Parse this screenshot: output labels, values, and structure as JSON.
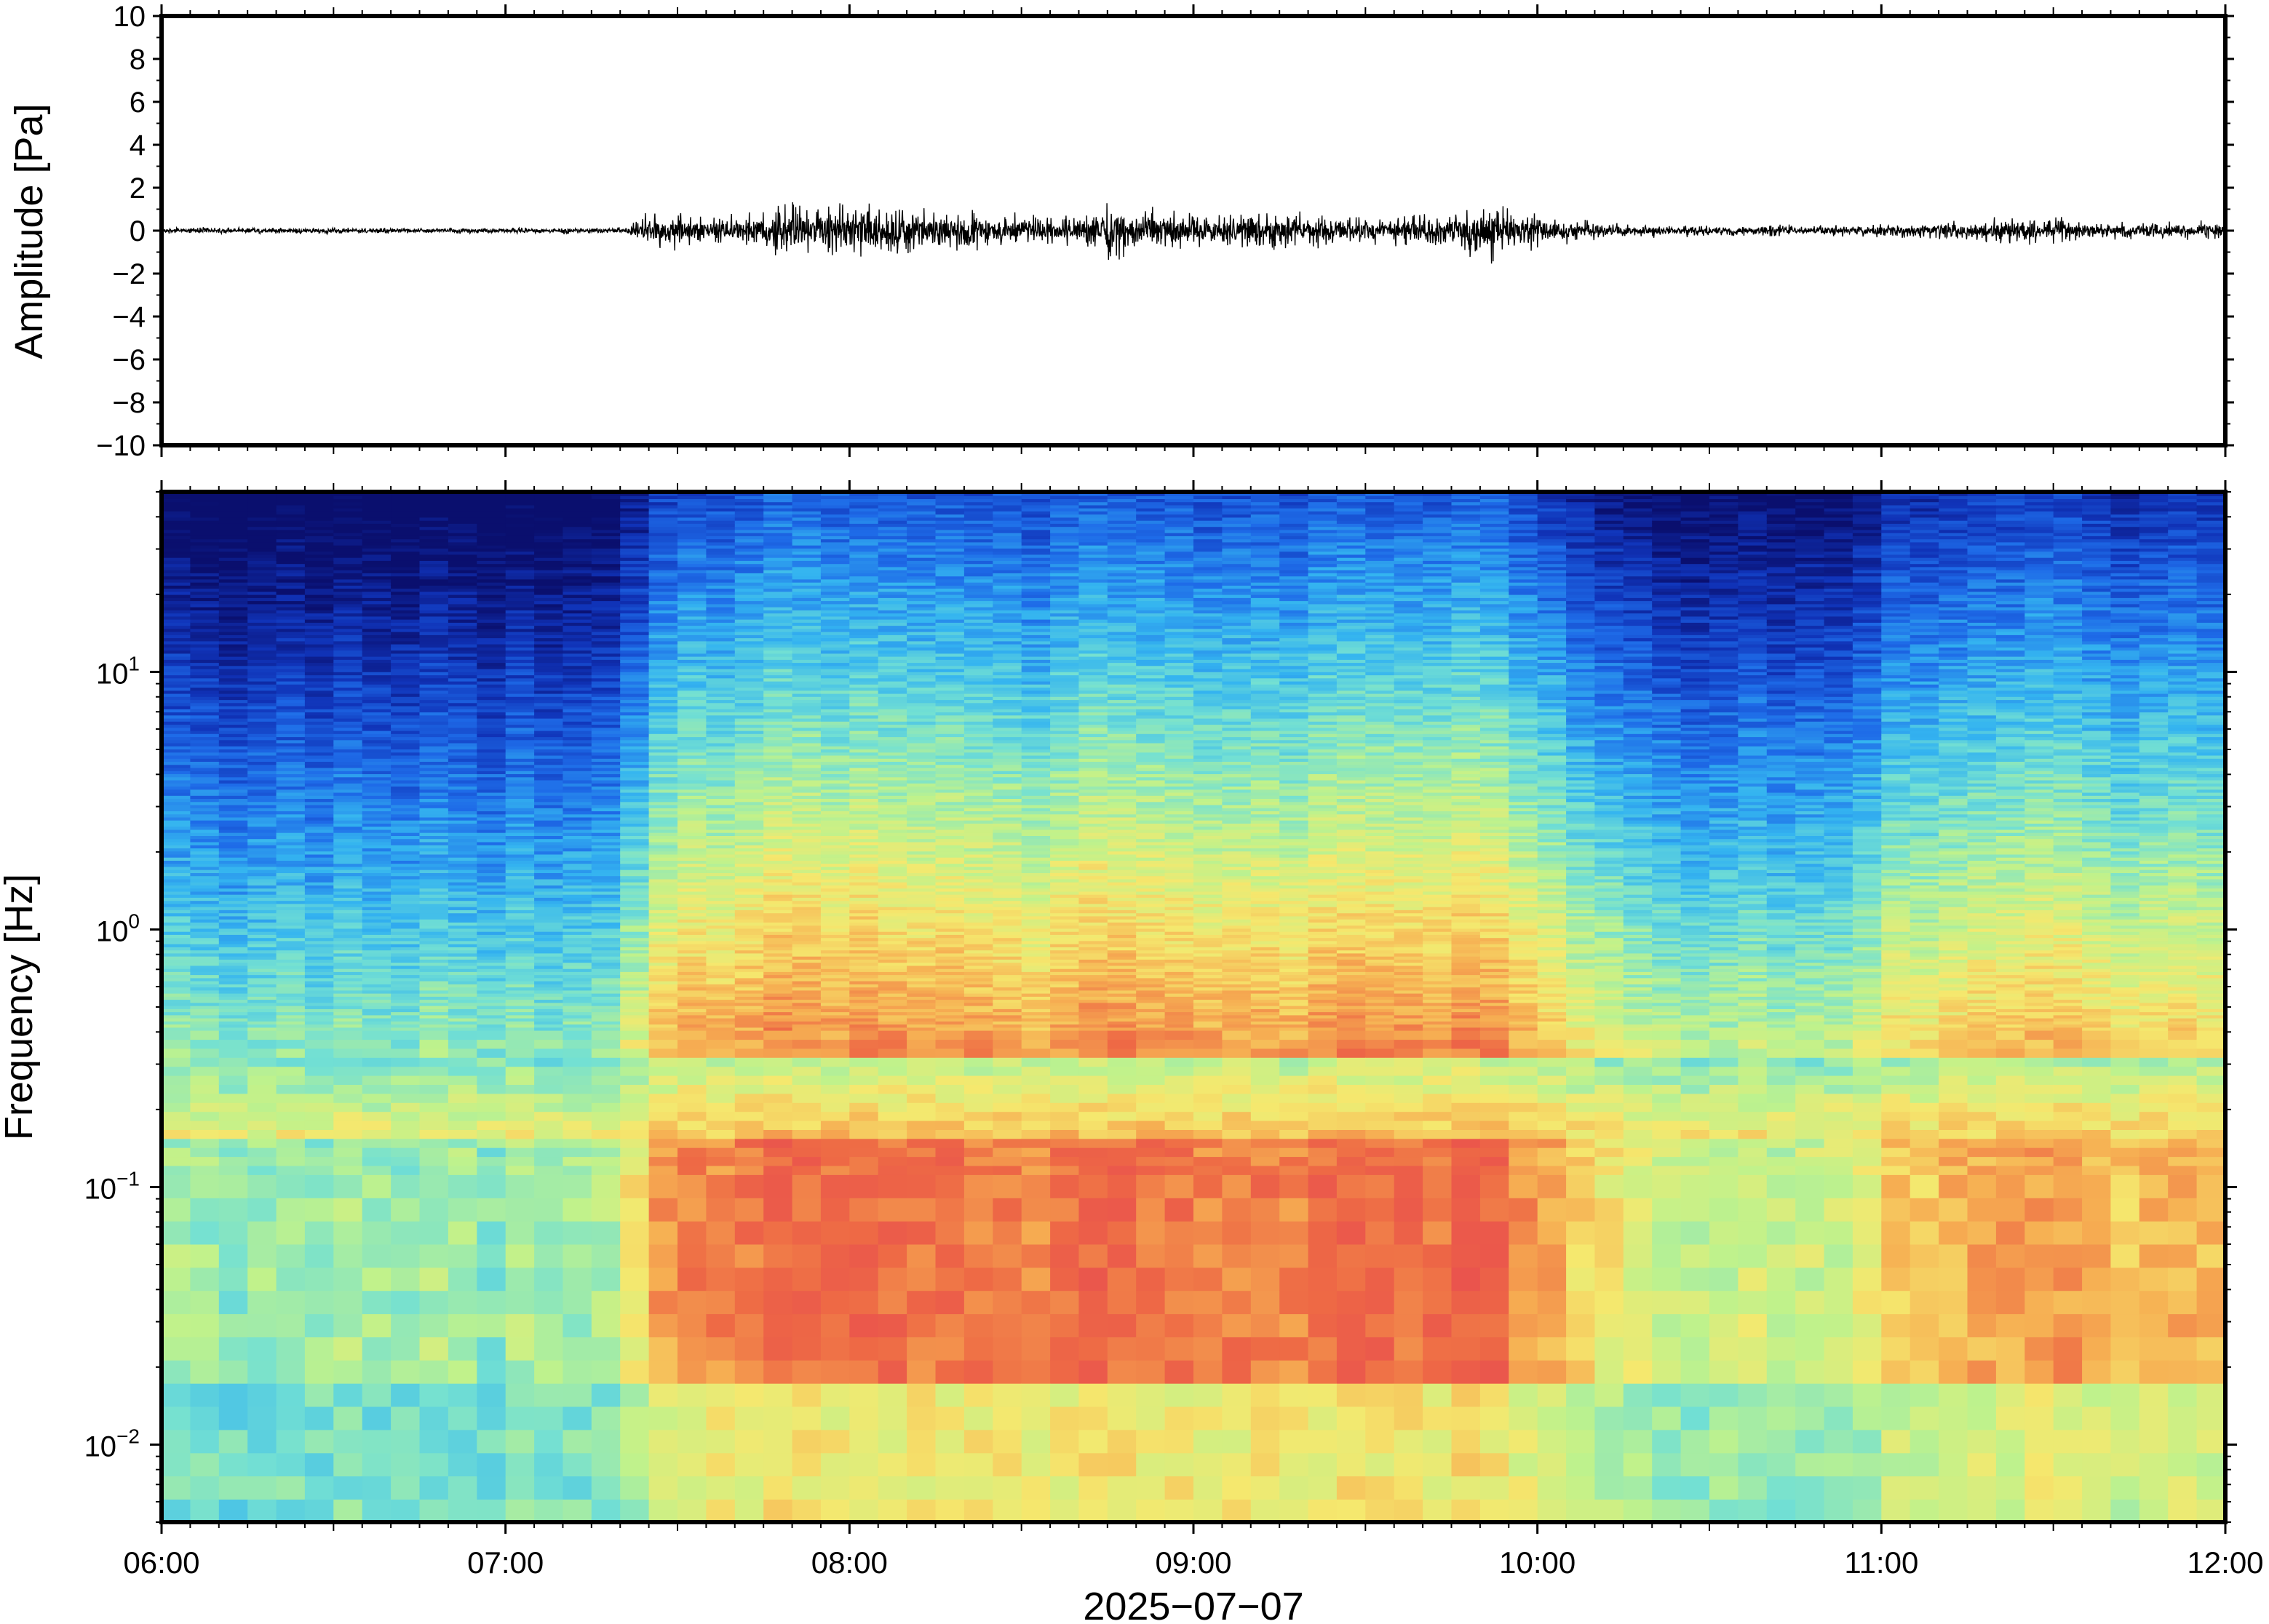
{
  "chart_data": [
    {
      "type": "line",
      "panel": "waveform",
      "ylabel": "Amplitude [Pa]",
      "ylim": [
        -10,
        10
      ],
      "yticks": [
        10,
        8,
        6,
        4,
        2,
        0,
        -2,
        -4,
        -6,
        -8,
        -10
      ],
      "ytick_labels": [
        "10",
        "8",
        "6",
        "4",
        "2",
        "0",
        "−2",
        "−4",
        "−6",
        "−8",
        "−10"
      ],
      "x_range": [
        "06:00",
        "12:00"
      ],
      "baseline": 0,
      "line_color": "#000000",
      "envelope_hours": [
        6.0,
        7.35,
        7.42,
        7.6,
        7.85,
        8.1,
        8.4,
        8.6,
        8.72,
        8.75,
        9.0,
        9.3,
        9.5,
        9.7,
        9.85,
        9.95,
        10.2,
        10.6,
        11.0,
        11.3,
        11.45,
        11.7,
        12.0
      ],
      "envelope_pa": [
        0.15,
        0.15,
        1.0,
        0.6,
        1.4,
        1.2,
        0.9,
        0.7,
        1.0,
        1.7,
        0.8,
        0.9,
        0.7,
        0.8,
        1.6,
        1.0,
        0.35,
        0.25,
        0.3,
        0.6,
        0.7,
        0.4,
        0.5
      ]
    },
    {
      "type": "heatmap",
      "panel": "spectrogram",
      "ylabel": "Frequency [Hz]",
      "xlabel": "2025−07−07",
      "y_scale": "log",
      "ylim": [
        0.005,
        50
      ],
      "ytick_values": [
        10,
        1,
        0.1,
        0.01
      ],
      "ytick_labels": [
        {
          "base": "10",
          "exp": "1"
        },
        {
          "base": "10",
          "exp": "0"
        },
        {
          "base": "10",
          "exp": "−1"
        },
        {
          "base": "10",
          "exp": "−2"
        }
      ],
      "x_ticks": [
        "06:00",
        "07:00",
        "08:00",
        "09:00",
        "10:00",
        "11:00",
        "12:00"
      ],
      "colormap": [
        "#0a0f6e",
        "#1033b8",
        "#1e6be8",
        "#34b4f0",
        "#73e0d3",
        "#bff28c",
        "#f5e86e",
        "#f6ae52",
        "#ee6a45",
        "#e84a50"
      ],
      "activity_hours": [
        6.0,
        7.35,
        7.4,
        7.6,
        7.85,
        8.1,
        8.3,
        8.55,
        8.75,
        9.0,
        9.3,
        9.6,
        9.85,
        10.05,
        10.35,
        10.9,
        11.0,
        11.35,
        11.7,
        12.0
      ],
      "activity_level": [
        0.12,
        0.12,
        0.7,
        0.75,
        0.9,
        0.85,
        0.8,
        0.78,
        0.95,
        0.85,
        0.82,
        0.85,
        0.95,
        0.6,
        0.25,
        0.3,
        0.5,
        0.72,
        0.6,
        0.65
      ]
    }
  ]
}
